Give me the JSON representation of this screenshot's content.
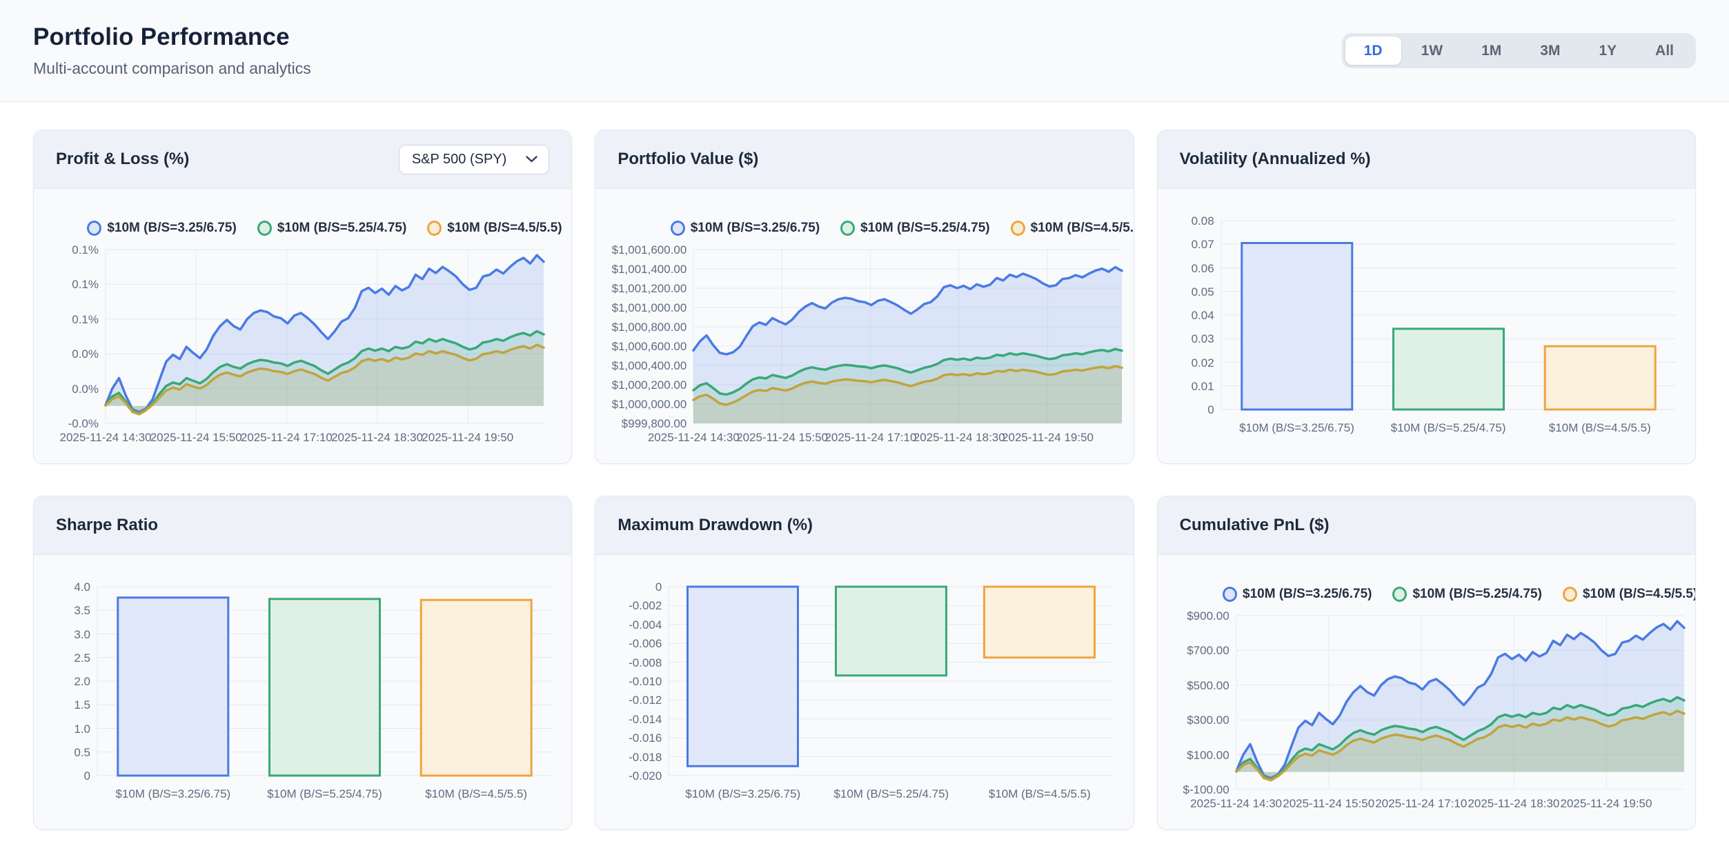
{
  "header": {
    "title": "Portfolio Performance",
    "subtitle": "Multi-account comparison and analytics"
  },
  "time_ranges": {
    "options": [
      "1D",
      "1W",
      "1M",
      "3M",
      "1Y",
      "All"
    ],
    "selected": "1D"
  },
  "colors": {
    "accent_blue": "#4a7be4",
    "accent_green": "#39a877",
    "accent_orange": "#efa53c",
    "active_range_text": "#2f6bdf"
  },
  "accounts": [
    {
      "label": "$10M (B/S=3.25/6.75)",
      "line_color": "#4a7be4",
      "accent": "#4a7be4",
      "marker_fill": "#dfe6f9",
      "bar_fill": "#e0e8fa",
      "area_fill": "rgba(74,123,228,0.16)",
      "cumulative_pnl_usd": [
        5,
        100,
        160,
        60,
        -20,
        -35,
        -15,
        40,
        150,
        255,
        295,
        270,
        340,
        305,
        275,
        325,
        405,
        460,
        495,
        460,
        440,
        500,
        535,
        550,
        540,
        515,
        505,
        475,
        520,
        535,
        505,
        470,
        425,
        385,
        430,
        485,
        505,
        565,
        660,
        680,
        650,
        675,
        640,
        690,
        665,
        685,
        755,
        730,
        790,
        765,
        800,
        775,
        745,
        700,
        668,
        680,
        745,
        755,
        785,
        762,
        800,
        832,
        852,
        820,
        868,
        830
      ]
    },
    {
      "label": "$10M (B/S=5.25/4.75)",
      "line_color": "#39a877",
      "accent": "#39a877",
      "marker_fill": "#ddf0e6",
      "bar_fill": "#dff1e6",
      "area_fill": "rgba(57,168,119,0.16)",
      "cumulative_pnl_usd": [
        3,
        55,
        75,
        25,
        -30,
        -42,
        -20,
        15,
        70,
        115,
        135,
        125,
        160,
        145,
        130,
        155,
        195,
        225,
        240,
        225,
        215,
        240,
        255,
        265,
        260,
        250,
        245,
        230,
        250,
        260,
        245,
        230,
        205,
        185,
        210,
        235,
        250,
        275,
        315,
        330,
        318,
        330,
        315,
        340,
        330,
        340,
        370,
        360,
        385,
        370,
        385,
        372,
        360,
        340,
        325,
        335,
        365,
        372,
        385,
        375,
        395,
        410,
        420,
        405,
        430,
        412
      ]
    },
    {
      "label": "$10M (B/S=4.5/5.5)",
      "line_color": "#c2a33d",
      "accent": "#efa53c",
      "marker_fill": "#f8edd8",
      "bar_fill": "#fbf1dd",
      "area_fill": "rgba(194,163,61,0.16)",
      "cumulative_pnl_usd": [
        2,
        40,
        55,
        15,
        -35,
        -48,
        -25,
        8,
        50,
        88,
        105,
        95,
        125,
        112,
        100,
        120,
        155,
        180,
        192,
        180,
        170,
        192,
        205,
        215,
        210,
        200,
        196,
        184,
        200,
        210,
        196,
        184,
        162,
        146,
        168,
        190,
        200,
        222,
        258,
        270,
        260,
        270,
        256,
        278,
        268,
        278,
        302,
        294,
        315,
        302,
        315,
        304,
        294,
        276,
        262,
        272,
        298,
        304,
        315,
        306,
        322,
        335,
        344,
        330,
        352,
        336
      ]
    }
  ],
  "chart_data": [
    {
      "type": "area",
      "title": "Profit & Loss (%)",
      "benchmark_selector": {
        "value": "S&P 500 (SPY)"
      },
      "x_tick_labels": [
        "2025-11-24 14:30",
        "2025-11-24 15:50",
        "2025-11-24 17:10",
        "2025-11-24 18:30",
        "2025-11-24 19:50"
      ],
      "y_tick_labels": [
        "0.1%",
        "0.1%",
        "0.1%",
        "0.0%",
        "0.0%",
        "-0.0%"
      ],
      "y_tick_values": [
        0.09,
        0.07,
        0.05,
        0.03,
        0.01,
        -0.01
      ],
      "ylim": [
        -0.01,
        0.09
      ],
      "legend": true,
      "derivation": "values = accounts[i].cumulative_pnl_usd / 1000000 * 100 (percent of $1,000,000 base)"
    },
    {
      "type": "area",
      "title": "Portfolio Value ($)",
      "x_tick_labels": [
        "2025-11-24 14:30",
        "2025-11-24 15:50",
        "2025-11-24 17:10",
        "2025-11-24 18:30",
        "2025-11-24 19:50"
      ],
      "y_tick_labels": [
        "$1,001,600.00",
        "$1,001,400.00",
        "$1,001,200.00",
        "$1,001,000.00",
        "$1,000,800.00",
        "$1,000,600.00",
        "$1,000,400.00",
        "$1,000,200.00",
        "$1,000,000.00",
        "$999,800.00"
      ],
      "y_tick_values": [
        1001600,
        1001400,
        1001200,
        1001000,
        1000800,
        1000600,
        1000400,
        1000200,
        1000000,
        999800
      ],
      "ylim": [
        999800,
        1001600
      ],
      "legend": true,
      "base_values": [
        1000550,
        1000140,
        1000040
      ],
      "derivation": "values = base_values[i] + accounts[i].cumulative_pnl_usd"
    },
    {
      "type": "bar",
      "title": "Volatility (Annualized %)",
      "categories": [
        "$10M (B/S=3.25/6.75)",
        "$10M (B/S=5.25/4.75)",
        "$10M (B/S=4.5/5.5)"
      ],
      "values": [
        0.0705,
        0.0342,
        0.0268
      ],
      "y_tick_labels": [
        "0.08",
        "0.07",
        "0.06",
        "0.05",
        "0.04",
        "0.03",
        "0.02",
        "0.01",
        "0"
      ],
      "y_tick_values": [
        0.08,
        0.07,
        0.06,
        0.05,
        0.04,
        0.03,
        0.02,
        0.01,
        0
      ],
      "ylim": [
        0,
        0.08
      ],
      "legend": false
    },
    {
      "type": "bar",
      "title": "Sharpe Ratio",
      "categories": [
        "$10M (B/S=3.25/6.75)",
        "$10M (B/S=5.25/4.75)",
        "$10M (B/S=4.5/5.5)"
      ],
      "values": [
        3.77,
        3.74,
        3.72
      ],
      "y_tick_labels": [
        "4.0",
        "3.5",
        "3.0",
        "2.5",
        "2.0",
        "1.5",
        "1.0",
        "0.5",
        "0"
      ],
      "y_tick_values": [
        4.0,
        3.5,
        3.0,
        2.5,
        2.0,
        1.5,
        1.0,
        0.5,
        0
      ],
      "ylim": [
        0,
        4.0
      ],
      "legend": false
    },
    {
      "type": "bar",
      "title": "Maximum Drawdown (%)",
      "categories": [
        "$10M (B/S=3.25/6.75)",
        "$10M (B/S=5.25/4.75)",
        "$10M (B/S=4.5/5.5)"
      ],
      "values": [
        -0.019,
        -0.0094,
        -0.0075
      ],
      "y_tick_labels": [
        "0",
        "-0.002",
        "-0.004",
        "-0.006",
        "-0.008",
        "-0.010",
        "-0.012",
        "-0.014",
        "-0.016",
        "-0.018",
        "-0.020"
      ],
      "y_tick_values": [
        0,
        -0.002,
        -0.004,
        -0.006,
        -0.008,
        -0.01,
        -0.012,
        -0.014,
        -0.016,
        -0.018,
        -0.02
      ],
      "ylim": [
        -0.02,
        0
      ],
      "legend": false
    },
    {
      "type": "area",
      "title": "Cumulative PnL ($)",
      "x_tick_labels": [
        "2025-11-24 14:30",
        "2025-11-24 15:50",
        "2025-11-24 17:10",
        "2025-11-24 18:30",
        "2025-11-24 19:50"
      ],
      "y_tick_labels": [
        "$900.00",
        "$700.00",
        "$500.00",
        "$300.00",
        "$100.00",
        "$-100.00"
      ],
      "y_tick_values": [
        900,
        700,
        500,
        300,
        100,
        -100
      ],
      "ylim": [
        -100,
        900
      ],
      "legend": true,
      "derivation": "values = accounts[i].cumulative_pnl_usd"
    }
  ]
}
